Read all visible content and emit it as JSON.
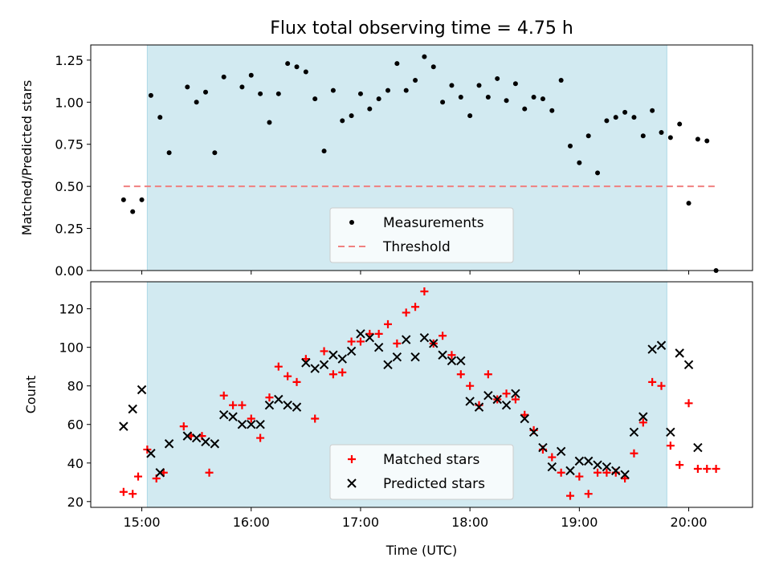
{
  "title": "Flux total observing time = 4.75 h",
  "colors": {
    "band": "#add8e6",
    "measure": "#000000",
    "threshold": "#f08080",
    "matched": "#ff0000",
    "predicted": "#000000"
  },
  "chart_data": [
    {
      "type": "scatter",
      "ylabel": "Matched/Predicted stars",
      "xlim": [
        "14:32",
        "20:35"
      ],
      "ylim": [
        0,
        1.34
      ],
      "yticks": [
        0.0,
        0.25,
        0.5,
        0.75,
        1.0,
        1.25
      ],
      "ytick_labels": [
        "0.00",
        "0.25",
        "0.50",
        "0.75",
        "1.00",
        "1.25"
      ],
      "highlight_span": [
        "15:03",
        "19:48"
      ],
      "legend": {
        "position": "lower center",
        "entries": [
          "Measurements",
          "Threshold"
        ]
      },
      "threshold": {
        "name": "Threshold",
        "value": 0.5,
        "x_range": [
          "14:50",
          "20:15"
        ]
      },
      "series": [
        {
          "name": "Measurements",
          "x": [
            "14:50",
            "14:55",
            "15:00",
            "15:05",
            "15:10",
            "15:15",
            "15:25",
            "15:30",
            "15:35",
            "15:40",
            "15:45",
            "15:55",
            "16:00",
            "16:05",
            "16:10",
            "16:15",
            "16:20",
            "16:25",
            "16:30",
            "16:35",
            "16:40",
            "16:45",
            "16:50",
            "16:55",
            "17:00",
            "17:05",
            "17:10",
            "17:15",
            "17:20",
            "17:25",
            "17:30",
            "17:35",
            "17:40",
            "17:45",
            "17:50",
            "17:55",
            "18:00",
            "18:05",
            "18:10",
            "18:15",
            "18:20",
            "18:25",
            "18:30",
            "18:35",
            "18:40",
            "18:45",
            "18:50",
            "18:55",
            "19:00",
            "19:05",
            "19:10",
            "19:15",
            "19:20",
            "19:25",
            "19:30",
            "19:35",
            "19:40",
            "19:45",
            "19:50",
            "19:55",
            "20:00",
            "20:05",
            "20:10",
            "20:15"
          ],
          "y": [
            0.42,
            0.35,
            0.42,
            1.04,
            0.91,
            0.7,
            1.09,
            1.0,
            1.06,
            0.7,
            1.15,
            1.09,
            1.16,
            1.05,
            0.88,
            1.05,
            1.23,
            1.21,
            1.18,
            1.02,
            0.71,
            1.07,
            0.89,
            0.92,
            1.05,
            0.96,
            1.02,
            1.07,
            1.23,
            1.07,
            1.13,
            1.27,
            1.21,
            1.0,
            1.1,
            1.03,
            0.92,
            1.1,
            1.03,
            1.14,
            1.01,
            1.11,
            0.96,
            1.03,
            1.02,
            0.95,
            1.13,
            0.74,
            0.64,
            0.8,
            0.58,
            0.89,
            0.91,
            0.94,
            0.91,
            0.8,
            0.95,
            0.82,
            0.79,
            0.87,
            0.4,
            0.78,
            0.77,
            0.0
          ]
        }
      ]
    },
    {
      "type": "scatter",
      "xlabel": "Time (UTC)",
      "ylabel": "Count",
      "xlim": [
        "14:32",
        "20:35"
      ],
      "ylim": [
        17,
        134
      ],
      "yticks": [
        20,
        40,
        60,
        80,
        100,
        120
      ],
      "xticks": [
        "15:00",
        "16:00",
        "17:00",
        "18:00",
        "19:00",
        "20:00"
      ],
      "highlight_span": [
        "15:03",
        "19:48"
      ],
      "legend": {
        "position": "lower center",
        "entries": [
          "Matched stars",
          "Predicted stars"
        ]
      },
      "series": [
        {
          "name": "Matched stars",
          "x": [
            "14:50",
            "14:55",
            "14:58",
            "15:03",
            "15:08",
            "15:12",
            "15:23",
            "15:27",
            "15:33",
            "15:37",
            "15:45",
            "15:50",
            "15:55",
            "16:00",
            "16:05",
            "16:10",
            "16:15",
            "16:20",
            "16:25",
            "16:30",
            "16:35",
            "16:40",
            "16:45",
            "16:50",
            "16:55",
            "17:00",
            "17:05",
            "17:10",
            "17:15",
            "17:20",
            "17:25",
            "17:30",
            "17:35",
            "17:40",
            "17:45",
            "17:50",
            "17:55",
            "18:00",
            "18:05",
            "18:10",
            "18:15",
            "18:20",
            "18:25",
            "18:30",
            "18:35",
            "18:40",
            "18:45",
            "18:50",
            "18:55",
            "19:00",
            "19:05",
            "19:10",
            "19:15",
            "19:20",
            "19:25",
            "19:30",
            "19:35",
            "19:40",
            "19:45",
            "19:50",
            "19:55",
            "20:00",
            "20:05",
            "20:10",
            "20:15"
          ],
          "y": [
            25,
            24,
            33,
            47,
            32,
            35,
            59,
            54,
            54,
            35,
            75,
            70,
            70,
            63,
            53,
            74,
            90,
            85,
            82,
            94,
            63,
            98,
            86,
            87,
            103,
            103,
            107,
            107,
            112,
            102,
            118,
            121,
            129,
            102,
            106,
            96,
            86,
            80,
            70,
            86,
            73,
            76,
            73,
            65,
            57,
            47,
            43,
            35,
            23,
            33,
            24,
            35,
            35,
            35,
            32,
            45,
            61,
            82,
            80,
            49,
            39,
            71,
            37,
            37,
            37
          ]
        },
        {
          "name": "Predicted stars",
          "x": [
            "14:50",
            "14:55",
            "15:00",
            "15:05",
            "15:10",
            "15:15",
            "15:25",
            "15:30",
            "15:35",
            "15:40",
            "15:45",
            "15:50",
            "15:55",
            "16:00",
            "16:05",
            "16:10",
            "16:15",
            "16:20",
            "16:25",
            "16:30",
            "16:35",
            "16:40",
            "16:45",
            "16:50",
            "16:55",
            "17:00",
            "17:05",
            "17:10",
            "17:15",
            "17:20",
            "17:25",
            "17:30",
            "17:35",
            "17:40",
            "17:45",
            "17:50",
            "17:55",
            "18:00",
            "18:05",
            "18:10",
            "18:15",
            "18:20",
            "18:25",
            "18:30",
            "18:35",
            "18:40",
            "18:45",
            "18:50",
            "18:55",
            "19:00",
            "19:05",
            "19:10",
            "19:15",
            "19:20",
            "19:25",
            "19:30",
            "19:35",
            "19:40",
            "19:45",
            "19:50",
            "19:55",
            "20:00",
            "20:05"
          ],
          "y": [
            59,
            68,
            78,
            45,
            35,
            50,
            54,
            53,
            51,
            50,
            65,
            64,
            60,
            60,
            60,
            70,
            73,
            70,
            69,
            92,
            89,
            91,
            96,
            94,
            98,
            107,
            105,
            100,
            91,
            95,
            104,
            95,
            105,
            102,
            96,
            93,
            93,
            72,
            69,
            75,
            73,
            70,
            76,
            63,
            56,
            48,
            38,
            46,
            36,
            41,
            41,
            39,
            38,
            36,
            34,
            56,
            64,
            99,
            101,
            56,
            97,
            91,
            48
          ]
        }
      ]
    }
  ]
}
